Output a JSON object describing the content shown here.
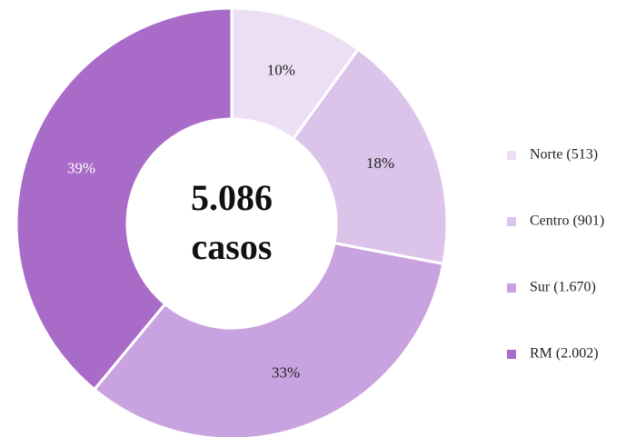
{
  "chart_data": {
    "type": "pie",
    "center_texts": [
      "5.086",
      "casos"
    ],
    "categories": [
      "Norte (513)",
      "Centro (901)",
      "Sur (1.670)",
      "RM (2.002)"
    ],
    "values": [
      10,
      18,
      33,
      39
    ],
    "value_labels": [
      "10%",
      "18%",
      "33%",
      "39%"
    ],
    "colors": [
      "#ecdff3",
      "#dcc3ea",
      "#c9a3df",
      "#a96bc8"
    ],
    "label_colors": [
      "#222222",
      "#222222",
      "#222222",
      "#ffffff"
    ],
    "legend": "right"
  }
}
